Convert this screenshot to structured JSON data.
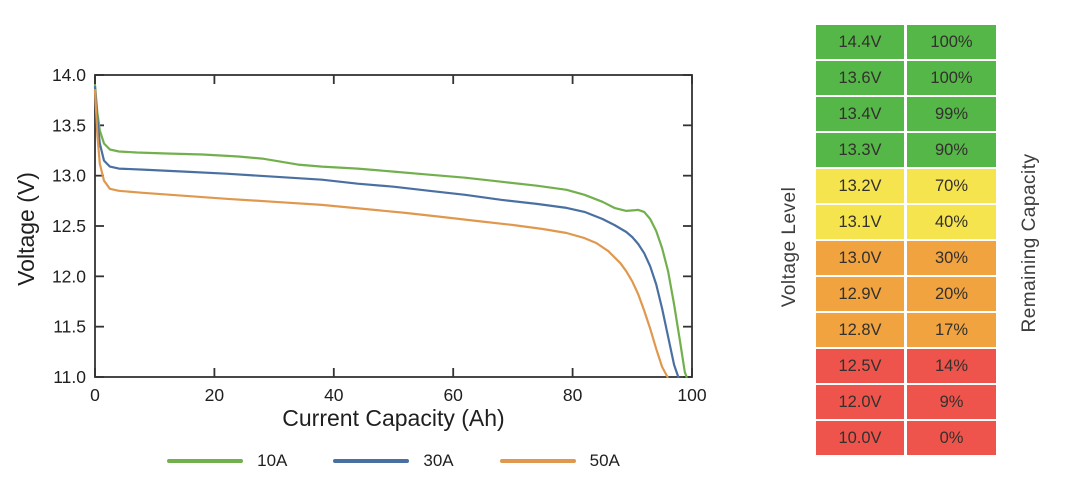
{
  "chart_data": {
    "type": "line",
    "title": "",
    "xlabel": "Current Capacity (Ah)",
    "ylabel": "Voltage (V)",
    "xlim": [
      0,
      100
    ],
    "ylim": [
      11.0,
      14.0
    ],
    "xticks": [
      0,
      20,
      40,
      60,
      80,
      100
    ],
    "yticks": [
      11.0,
      11.5,
      12.0,
      12.5,
      13.0,
      13.5,
      14.0
    ],
    "grid": false,
    "legend_position": "bottom-center",
    "axis_color": "#333333",
    "series": [
      {
        "name": "10A",
        "color": "#72b04e",
        "points": [
          [
            0,
            13.9
          ],
          [
            0.4,
            13.62
          ],
          [
            0.8,
            13.45
          ],
          [
            1.5,
            13.32
          ],
          [
            2.5,
            13.26
          ],
          [
            4,
            13.24
          ],
          [
            7,
            13.23
          ],
          [
            12,
            13.22
          ],
          [
            18,
            13.21
          ],
          [
            24,
            13.19
          ],
          [
            28,
            13.17
          ],
          [
            31,
            13.14
          ],
          [
            34,
            13.11
          ],
          [
            38,
            13.09
          ],
          [
            44,
            13.07
          ],
          [
            50,
            13.04
          ],
          [
            56,
            13.01
          ],
          [
            62,
            12.98
          ],
          [
            68,
            12.94
          ],
          [
            74,
            12.9
          ],
          [
            79,
            12.86
          ],
          [
            82,
            12.81
          ],
          [
            85,
            12.74
          ],
          [
            87,
            12.68
          ],
          [
            89,
            12.65
          ],
          [
            91,
            12.66
          ],
          [
            92,
            12.64
          ],
          [
            93,
            12.57
          ],
          [
            94,
            12.45
          ],
          [
            95,
            12.28
          ],
          [
            96,
            12.05
          ],
          [
            97,
            11.72
          ],
          [
            98,
            11.35
          ],
          [
            98.8,
            11.05
          ],
          [
            99.1,
            11.0
          ]
        ]
      },
      {
        "name": "30A",
        "color": "#4a70a2",
        "points": [
          [
            0,
            13.88
          ],
          [
            0.4,
            13.55
          ],
          [
            0.8,
            13.32
          ],
          [
            1.5,
            13.15
          ],
          [
            2.5,
            13.09
          ],
          [
            4,
            13.07
          ],
          [
            8,
            13.06
          ],
          [
            15,
            13.04
          ],
          [
            22,
            13.02
          ],
          [
            30,
            12.99
          ],
          [
            38,
            12.96
          ],
          [
            44,
            12.92
          ],
          [
            50,
            12.89
          ],
          [
            56,
            12.85
          ],
          [
            62,
            12.81
          ],
          [
            68,
            12.76
          ],
          [
            74,
            12.72
          ],
          [
            79,
            12.68
          ],
          [
            82,
            12.64
          ],
          [
            85,
            12.57
          ],
          [
            87,
            12.51
          ],
          [
            89,
            12.44
          ],
          [
            90,
            12.39
          ],
          [
            91,
            12.32
          ],
          [
            92,
            12.23
          ],
          [
            93,
            12.1
          ],
          [
            94,
            11.92
          ],
          [
            95,
            11.68
          ],
          [
            96,
            11.4
          ],
          [
            97,
            11.12
          ],
          [
            97.7,
            11.0
          ]
        ]
      },
      {
        "name": "50A",
        "color": "#e0984e",
        "points": [
          [
            0,
            13.85
          ],
          [
            0.4,
            13.4
          ],
          [
            0.8,
            13.12
          ],
          [
            1.5,
            12.95
          ],
          [
            2.5,
            12.87
          ],
          [
            4,
            12.85
          ],
          [
            8,
            12.83
          ],
          [
            15,
            12.8
          ],
          [
            22,
            12.77
          ],
          [
            30,
            12.74
          ],
          [
            38,
            12.71
          ],
          [
            45,
            12.67
          ],
          [
            52,
            12.63
          ],
          [
            58,
            12.59
          ],
          [
            64,
            12.55
          ],
          [
            70,
            12.51
          ],
          [
            75,
            12.47
          ],
          [
            79,
            12.43
          ],
          [
            82,
            12.38
          ],
          [
            84,
            12.33
          ],
          [
            86,
            12.25
          ],
          [
            88,
            12.13
          ],
          [
            89,
            12.05
          ],
          [
            90,
            11.95
          ],
          [
            91,
            11.82
          ],
          [
            92,
            11.66
          ],
          [
            93,
            11.48
          ],
          [
            94,
            11.28
          ],
          [
            95,
            11.1
          ],
          [
            95.9,
            11.0
          ]
        ]
      }
    ]
  },
  "table": {
    "left_label": "Voltage Level",
    "right_label": "Remaining Capacity",
    "level_colors": {
      "green": "#55b747",
      "yellow": "#f5e44e",
      "orange": "#f0a33e",
      "red": "#ee544b"
    },
    "rows": [
      {
        "voltage": "14.4V",
        "capacity": "100%",
        "level": "green"
      },
      {
        "voltage": "13.6V",
        "capacity": "100%",
        "level": "green"
      },
      {
        "voltage": "13.4V",
        "capacity": "99%",
        "level": "green"
      },
      {
        "voltage": "13.3V",
        "capacity": "90%",
        "level": "green"
      },
      {
        "voltage": "13.2V",
        "capacity": "70%",
        "level": "yellow"
      },
      {
        "voltage": "13.1V",
        "capacity": "40%",
        "level": "yellow"
      },
      {
        "voltage": "13.0V",
        "capacity": "30%",
        "level": "orange"
      },
      {
        "voltage": "12.9V",
        "capacity": "20%",
        "level": "orange"
      },
      {
        "voltage": "12.8V",
        "capacity": "17%",
        "level": "orange"
      },
      {
        "voltage": "12.5V",
        "capacity": "14%",
        "level": "red"
      },
      {
        "voltage": "12.0V",
        "capacity": "9%",
        "level": "red"
      },
      {
        "voltage": "10.0V",
        "capacity": "0%",
        "level": "red"
      }
    ]
  }
}
